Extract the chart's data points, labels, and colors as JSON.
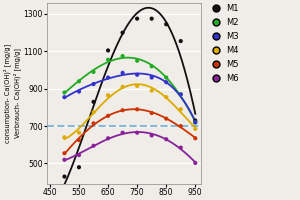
{
  "ylabel_line1": "consumption- Ca(OH)² [mg/g]",
  "ylabel_line2": "Verbrauch- Ca(OH)² [mg/g]",
  "xlim": [
    440,
    970
  ],
  "ylim": [
    390,
    1360
  ],
  "yticks": [
    500,
    700,
    900,
    1100,
    1300
  ],
  "xticks": [
    450,
    550,
    650,
    750,
    850,
    950
  ],
  "dashed_line_y": 700,
  "bg_color": "#f0ede8",
  "series": [
    {
      "name": "M1",
      "color": "#111111",
      "points_x": [
        500,
        550,
        600,
        650,
        700,
        750,
        800,
        850,
        900,
        950
      ],
      "points_y": [
        430,
        480,
        830,
        1105,
        1200,
        1275,
        1275,
        1245,
        1155,
        730
      ]
    },
    {
      "name": "M2",
      "color": "#22aa22",
      "points_x": [
        500,
        550,
        600,
        650,
        700,
        750,
        800,
        850,
        900,
        950
      ],
      "points_y": [
        880,
        940,
        990,
        1055,
        1075,
        1050,
        1020,
        960,
        870,
        720
      ]
    },
    {
      "name": "M3",
      "color": "#3333cc",
      "points_x": [
        500,
        550,
        600,
        650,
        700,
        750,
        800,
        850,
        900,
        950
      ],
      "points_y": [
        855,
        885,
        925,
        960,
        985,
        975,
        960,
        935,
        870,
        720
      ]
    },
    {
      "name": "M4",
      "color": "#ddaa00",
      "points_x": [
        500,
        550,
        600,
        650,
        700,
        750,
        800,
        850,
        900,
        950
      ],
      "points_y": [
        640,
        665,
        775,
        865,
        910,
        915,
        890,
        855,
        790,
        685
      ]
    },
    {
      "name": "M5",
      "color": "#cc3300",
      "points_x": [
        500,
        550,
        600,
        650,
        700,
        750,
        800,
        850,
        900,
        950
      ],
      "points_y": [
        555,
        625,
        715,
        755,
        785,
        790,
        770,
        740,
        700,
        635
      ]
    },
    {
      "name": "M6",
      "color": "#882299",
      "points_x": [
        500,
        550,
        600,
        650,
        700,
        750,
        800,
        850,
        900,
        950
      ],
      "points_y": [
        520,
        545,
        595,
        635,
        665,
        665,
        650,
        630,
        585,
        503
      ]
    }
  ],
  "legend_marker_size": 5,
  "axis_label_fontsize": 4.8,
  "tick_fontsize": 5.5,
  "legend_fontsize": 6.0
}
